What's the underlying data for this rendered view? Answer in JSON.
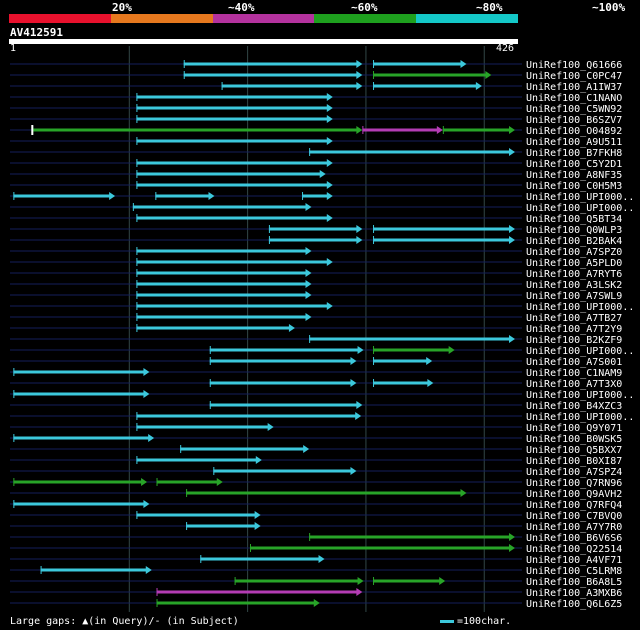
{
  "header": {
    "percent_labels": [
      "20%",
      "~40%",
      "~60%",
      "~80%",
      "~100%"
    ],
    "color_segments": [
      {
        "color": "#e8112d"
      },
      {
        "color": "#e6781e"
      },
      {
        "color": "#b4329e"
      },
      {
        "color": "#1ea01e"
      },
      {
        "color": "#14c8c8"
      }
    ]
  },
  "query": {
    "id": "AV412591",
    "start": "1",
    "end": "426",
    "length": 426
  },
  "colors": {
    "cyan": "#3cc8dc",
    "green": "#28a428",
    "magenta": "#b43cb4",
    "grid": "#324646",
    "row": "#141e5a",
    "background": "#000000"
  },
  "hits": [
    {
      "id": "UniRef100_Q61666",
      "segs": [
        [
          146,
          297,
          "c"
        ],
        [
          306,
          385,
          "c"
        ]
      ]
    },
    {
      "id": "UniRef100_C0PC47",
      "segs": [
        [
          146,
          297,
          "c"
        ],
        [
          306,
          406,
          "g"
        ]
      ]
    },
    {
      "id": "UniRef100_A1IW37",
      "segs": [
        [
          178,
          297,
          "c"
        ],
        [
          306,
          398,
          "c"
        ]
      ]
    },
    {
      "id": "UniRef100_C1NANO",
      "segs": [
        [
          106,
          272,
          "c"
        ]
      ]
    },
    {
      "id": "UniRef100_C5WN92",
      "segs": [
        [
          106,
          272,
          "c"
        ]
      ]
    },
    {
      "id": "UniRef100_B6SZV7",
      "segs": [
        [
          106,
          272,
          "c"
        ]
      ]
    },
    {
      "id": "UniRef100_O04892",
      "segs": [
        [
          18,
          297,
          "g"
        ],
        [
          297,
          365,
          "m"
        ],
        [
          365,
          426,
          "g"
        ]
      ],
      "start_tick": true,
      "end_arrow": true
    },
    {
      "id": "UniRef100_A9U511",
      "segs": [
        [
          106,
          272,
          "c"
        ]
      ]
    },
    {
      "id": "UniRef100_B7FKH8",
      "segs": [
        [
          252,
          426,
          "c"
        ]
      ]
    },
    {
      "id": "UniRef100_C5Y2D1",
      "segs": [
        [
          106,
          272,
          "c"
        ]
      ]
    },
    {
      "id": "UniRef100_A8NF35",
      "segs": [
        [
          106,
          266,
          "c"
        ]
      ]
    },
    {
      "id": "UniRef100_C0H5M3",
      "segs": [
        [
          106,
          272,
          "c"
        ]
      ]
    },
    {
      "id": "UniRef100_UPI000..",
      "segs": [
        [
          2,
          88,
          "c"
        ],
        [
          122,
          172,
          "c"
        ],
        [
          246,
          272,
          "c"
        ]
      ]
    },
    {
      "id": "UniRef100_UPI000..",
      "segs": [
        [
          103,
          254,
          "c"
        ]
      ]
    },
    {
      "id": "UniRef100_Q5BT34",
      "segs": [
        [
          106,
          272,
          "c"
        ]
      ]
    },
    {
      "id": "UniRef100_Q0WLP3",
      "segs": [
        [
          218,
          297,
          "c"
        ],
        [
          306,
          426,
          "c"
        ]
      ]
    },
    {
      "id": "UniRef100_B2BAK4",
      "segs": [
        [
          218,
          297,
          "c"
        ],
        [
          306,
          426,
          "c"
        ]
      ]
    },
    {
      "id": "UniRef100_A7SPZ0",
      "segs": [
        [
          106,
          254,
          "c"
        ]
      ]
    },
    {
      "id": "UniRef100_A5PLD0",
      "segs": [
        [
          106,
          272,
          "c"
        ]
      ]
    },
    {
      "id": "UniRef100_A7RYT6",
      "segs": [
        [
          106,
          254,
          "c"
        ]
      ]
    },
    {
      "id": "UniRef100_A3LSK2",
      "segs": [
        [
          106,
          254,
          "c"
        ]
      ]
    },
    {
      "id": "UniRef100_A7SWL9",
      "segs": [
        [
          106,
          254,
          "c"
        ]
      ]
    },
    {
      "id": "UniRef100_UPI000..",
      "segs": [
        [
          106,
          272,
          "c"
        ]
      ]
    },
    {
      "id": "UniRef100_A7TB27",
      "segs": [
        [
          106,
          254,
          "c"
        ]
      ]
    },
    {
      "id": "UniRef100_A7T2Y9",
      "segs": [
        [
          106,
          240,
          "c"
        ]
      ]
    },
    {
      "id": "UniRef100_B2KZF9",
      "segs": [
        [
          252,
          426,
          "c"
        ]
      ]
    },
    {
      "id": "UniRef100_UPI000..",
      "segs": [
        [
          168,
          298,
          "c"
        ],
        [
          306,
          375,
          "g"
        ]
      ]
    },
    {
      "id": "UniRef100_A7S001",
      "segs": [
        [
          168,
          292,
          "c"
        ],
        [
          306,
          356,
          "c"
        ]
      ]
    },
    {
      "id": "UniRef100_C1NAM9",
      "segs": [
        [
          2,
          117,
          "c"
        ]
      ]
    },
    {
      "id": "UniRef100_A7T3X0",
      "segs": [
        [
          168,
          292,
          "c"
        ],
        [
          306,
          357,
          "c"
        ]
      ]
    },
    {
      "id": "UniRef100_UPI000..",
      "segs": [
        [
          2,
          117,
          "c"
        ]
      ]
    },
    {
      "id": "UniRef100_B4XZC3",
      "segs": [
        [
          168,
          297,
          "c"
        ]
      ]
    },
    {
      "id": "UniRef100_UPI000..",
      "segs": [
        [
          106,
          296,
          "c"
        ]
      ]
    },
    {
      "id": "UniRef100_Q9Y071",
      "segs": [
        [
          106,
          222,
          "c"
        ]
      ]
    },
    {
      "id": "UniRef100_B0WSK5",
      "segs": [
        [
          2,
          121,
          "c"
        ]
      ]
    },
    {
      "id": "UniRef100_Q5BXX7",
      "segs": [
        [
          143,
          252,
          "c"
        ]
      ]
    },
    {
      "id": "UniRef100_B0XI87",
      "segs": [
        [
          106,
          212,
          "c"
        ]
      ]
    },
    {
      "id": "UniRef100_A7SPZ4",
      "segs": [
        [
          171,
          292,
          "c"
        ]
      ]
    },
    {
      "id": "UniRef100_Q7RN96",
      "segs": [
        [
          2,
          115,
          "g"
        ],
        [
          123,
          179,
          "g"
        ]
      ]
    },
    {
      "id": "UniRef100_Q9AVH2",
      "segs": [
        [
          148,
          385,
          "g"
        ]
      ]
    },
    {
      "id": "UniRef100_Q7RFQ4",
      "segs": [
        [
          2,
          117,
          "c"
        ]
      ]
    },
    {
      "id": "UniRef100_C7BVQ0",
      "segs": [
        [
          106,
          211,
          "c"
        ]
      ]
    },
    {
      "id": "UniRef100_A7Y7R0",
      "segs": [
        [
          148,
          211,
          "c"
        ]
      ]
    },
    {
      "id": "UniRef100_B6V6S6",
      "segs": [
        [
          252,
          426,
          "g"
        ]
      ]
    },
    {
      "id": "UniRef100_Q22514",
      "segs": [
        [
          202,
          426,
          "g"
        ]
      ]
    },
    {
      "id": "UniRef100_A4VF71",
      "segs": [
        [
          160,
          265,
          "c"
        ]
      ]
    },
    {
      "id": "UniRef100_C5LRM8",
      "segs": [
        [
          25,
          119,
          "c"
        ]
      ]
    },
    {
      "id": "UniRef100_B6A8L5",
      "segs": [
        [
          189,
          298,
          "g"
        ],
        [
          306,
          367,
          "g"
        ]
      ]
    },
    {
      "id": "UniRef100_A3MXB6",
      "segs": [
        [
          123,
          297,
          "m"
        ]
      ]
    },
    {
      "id": "UniRef100_Q6L6Z5",
      "segs": [
        [
          123,
          261,
          "g"
        ]
      ]
    }
  ],
  "legend": {
    "large_gaps": "Large gaps: ▲(in Query)/- (in Subject)",
    "scale": "=100char."
  }
}
